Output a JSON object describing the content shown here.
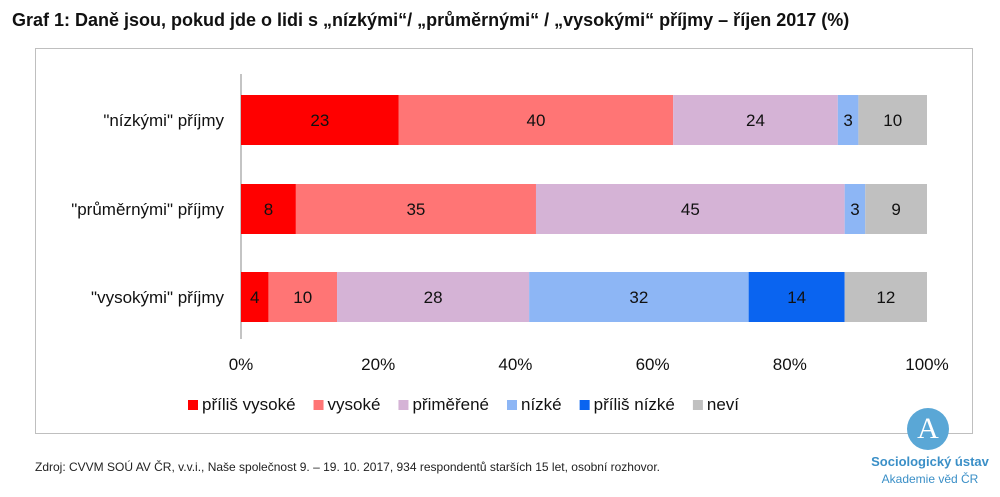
{
  "title": "Graf 1: Daně jsou, pokud jde o lidi s „nízkými“/ „průměrnými“ / „vysokými“ příjmy – říjen 2017 (%)",
  "source": "Zdroj: CVVM SOÚ AV ČR, v.v.i., Naše společnost 9. – 19. 10. 2017, 934 respondentů starších 15 let, osobní rozhovor.",
  "logo": {
    "letter": "A",
    "line1": "Sociologický ústav",
    "line2": "Akademie věd ČR"
  },
  "chart_data": {
    "type": "bar",
    "orientation": "horizontal",
    "stacked": "percent",
    "categories": [
      "\"nízkými\" příjmy",
      "\"průměrnými\" příjmy",
      "\"vysokými\" příjmy"
    ],
    "series": [
      {
        "name": "příliš vysoké",
        "color": "#ff0000",
        "values": [
          23,
          8,
          4
        ]
      },
      {
        "name": "vysoké",
        "color": "#ff7575",
        "values": [
          40,
          35,
          10
        ]
      },
      {
        "name": "přiměřené",
        "color": "#d5b3d6",
        "values": [
          24,
          45,
          28
        ]
      },
      {
        "name": "nízké",
        "color": "#8db6f5",
        "values": [
          3,
          3,
          32
        ]
      },
      {
        "name": "příliš nízké",
        "color": "#0a64f0",
        "values": [
          0,
          0,
          14
        ]
      },
      {
        "name": "neví",
        "color": "#c0c0c0",
        "values": [
          10,
          9,
          12
        ]
      }
    ],
    "data_labels": [
      [
        "23",
        "40",
        "24",
        "3",
        "",
        "10"
      ],
      [
        "8",
        "35",
        "45",
        "3",
        "",
        "9"
      ],
      [
        "4",
        "10",
        "28",
        "32",
        "14",
        "12"
      ]
    ],
    "x_ticks": [
      "0%",
      "20%",
      "40%",
      "60%",
      "80%",
      "100%"
    ],
    "xlim": [
      0,
      100
    ],
    "legend_position": "bottom",
    "grid": false
  }
}
